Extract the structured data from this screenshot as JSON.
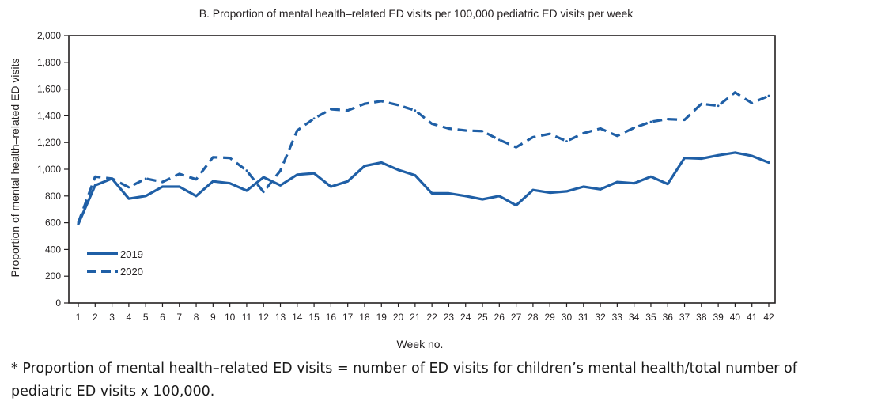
{
  "chart_data": {
    "type": "line",
    "title": "B. Proportion of mental health–related ED visits per 100,000 pediatric ED visits per week",
    "xlabel": "Week no.",
    "ylabel": "Proportion of mental health–related ED visits",
    "ylim": [
      0,
      2000
    ],
    "yticks": [
      0,
      200,
      400,
      600,
      800,
      1000,
      1200,
      1400,
      1600,
      1800,
      2000
    ],
    "ytick_labels": [
      "0",
      "200",
      "400",
      "600",
      "800",
      "1,000",
      "1,200",
      "1,400",
      "1,600",
      "1,800",
      "2,000"
    ],
    "x": [
      1,
      2,
      3,
      4,
      5,
      6,
      7,
      8,
      9,
      10,
      11,
      12,
      13,
      14,
      15,
      16,
      17,
      18,
      19,
      20,
      21,
      22,
      23,
      24,
      25,
      26,
      27,
      28,
      29,
      30,
      31,
      32,
      33,
      34,
      35,
      36,
      37,
      38,
      39,
      40,
      41,
      42
    ],
    "x_labels": [
      "1",
      "2",
      "3",
      "4",
      "5",
      "6",
      "7",
      "8",
      "9",
      "10",
      "11",
      "12",
      "13",
      "14",
      "15",
      "16",
      "17",
      "18",
      "19",
      "20",
      "21",
      "22",
      "23",
      "24",
      "25",
      "26",
      "27",
      "28",
      "29",
      "30",
      "31",
      "32",
      "33",
      "34",
      "35",
      "36",
      "37",
      "38",
      "39",
      "40",
      "41",
      "42"
    ],
    "grid": false,
    "legend_position": "bottom-left",
    "color": "#1f5fa6",
    "series": [
      {
        "name": "2019",
        "style": "solid",
        "values": [
          590,
          880,
          930,
          780,
          800,
          870,
          870,
          800,
          910,
          895,
          840,
          940,
          880,
          960,
          970,
          870,
          910,
          1025,
          1050,
          995,
          955,
          820,
          820,
          800,
          775,
          800,
          730,
          845,
          825,
          835,
          870,
          850,
          905,
          895,
          945,
          890,
          1085,
          1080,
          1105,
          1125,
          1100,
          1050
        ]
      },
      {
        "name": "2020",
        "style": "dashed",
        "values": [
          600,
          945,
          930,
          865,
          930,
          905,
          965,
          925,
          1090,
          1085,
          990,
          830,
          990,
          1290,
          1380,
          1450,
          1440,
          1490,
          1510,
          1480,
          1440,
          1340,
          1305,
          1290,
          1285,
          1220,
          1165,
          1240,
          1265,
          1210,
          1270,
          1305,
          1250,
          1310,
          1355,
          1375,
          1370,
          1490,
          1475,
          1575,
          1495,
          1550
        ]
      }
    ]
  },
  "footnote": {
    "line1": "* Proportion of mental health–related ED visits = number of ED visits for children’s mental health/total number of",
    "line2": "pediatric ED visits x 100,000."
  }
}
